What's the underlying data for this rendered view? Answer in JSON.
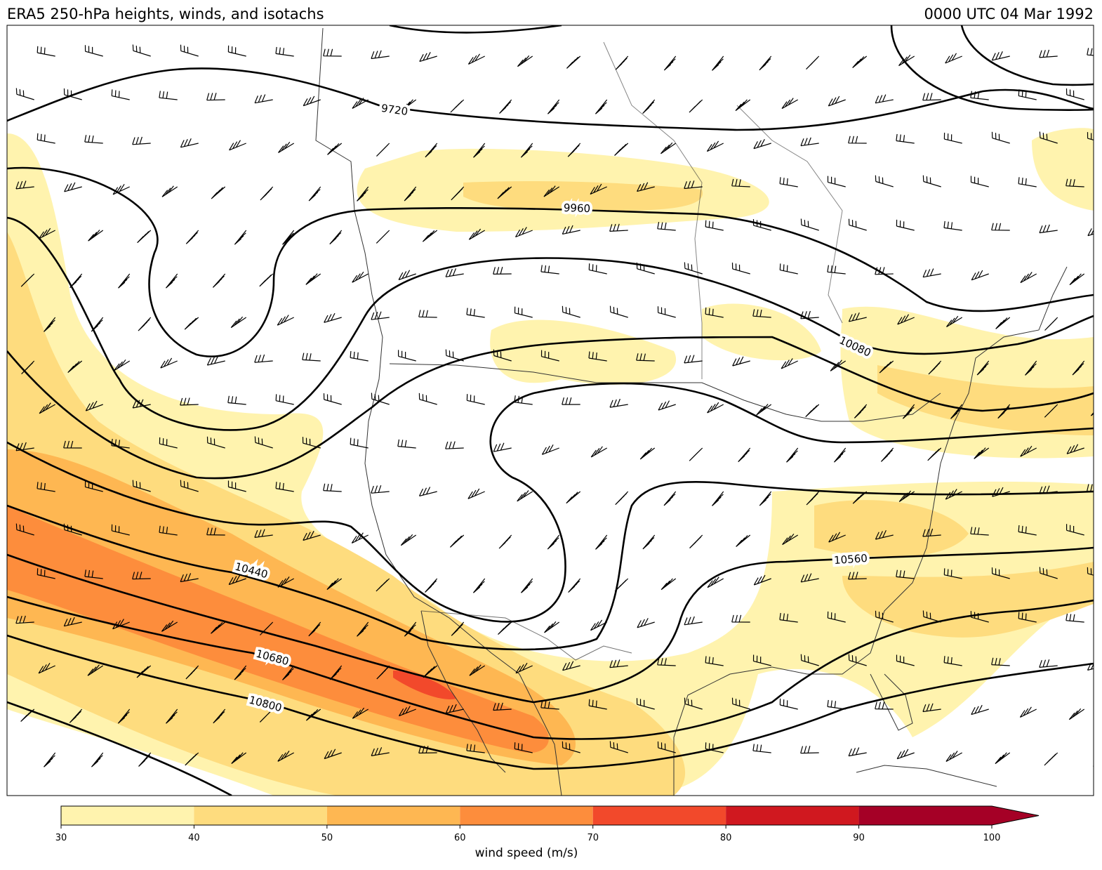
{
  "header": {
    "title": "ERA5 250-hPa heights, winds, and isotachs",
    "valid_time": "0000 UTC 04 Mar 1992"
  },
  "map": {
    "contour_labels": [
      9720,
      9960,
      10080,
      10440,
      10560,
      10680,
      10800
    ]
  },
  "colorbar": {
    "label": "wind speed (m/s)",
    "ticks": [
      30,
      40,
      50,
      60,
      70,
      80,
      90,
      100
    ],
    "colors": [
      "#fff3ae",
      "#fedc7e",
      "#feb752",
      "#fd8d3c",
      "#f2492b",
      "#d0181f",
      "#a50026"
    ],
    "extend": "max"
  }
}
